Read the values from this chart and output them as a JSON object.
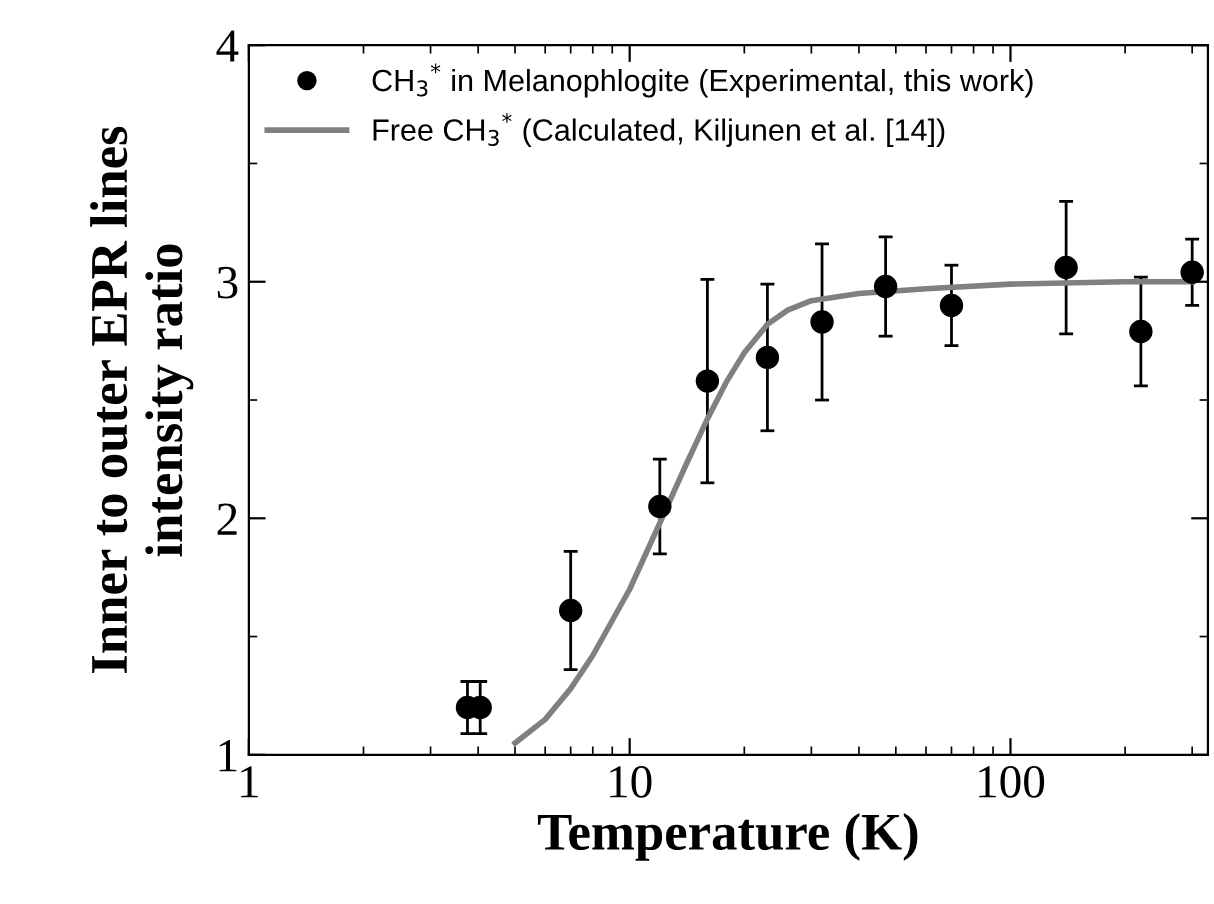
{
  "chart_data": {
    "type": "scatter",
    "xlabel": "Temperature (K)",
    "ylabel": "Inner to outer EPR lines\nintensity ratio",
    "log": "x",
    "xlim": [
      1,
      330
    ],
    "xticks": [
      1,
      10,
      100
    ],
    "ylim": [
      1,
      4
    ],
    "yticks": [
      1,
      2,
      3,
      4
    ],
    "grid": false,
    "legend": "top left",
    "series": [
      {
        "name": "CH$_{3}$$^{*}$ in Melanophlogite (Experimental, this work)",
        "color": "#000000",
        "marker": "circle",
        "x": [
          3.75,
          4.05,
          7,
          12,
          16,
          23,
          32,
          47,
          70,
          140,
          220,
          300
        ],
        "values": [
          1.2,
          1.2,
          1.61,
          2.05,
          2.58,
          2.68,
          2.83,
          2.98,
          2.9,
          3.06,
          2.79,
          3.04
        ],
        "errors": [
          0.11,
          0.11,
          0.25,
          0.2,
          0.43,
          0.31,
          0.33,
          0.21,
          0.17,
          0.28,
          0.23,
          0.14
        ]
      },
      {
        "name": "Free CH$_{3}$$^{*}$ (Calculated, Kiljunen et al. [14])",
        "type": "line",
        "color": "#808080",
        "marker": "none",
        "line_style": "solid",
        "x": [
          5,
          6,
          7,
          8,
          10,
          12,
          14,
          16,
          18,
          20,
          23,
          26,
          30,
          40,
          60,
          100,
          200,
          300
        ],
        "values": [
          1.05,
          1.15,
          1.28,
          1.42,
          1.7,
          1.98,
          2.22,
          2.42,
          2.58,
          2.7,
          2.82,
          2.88,
          2.92,
          2.95,
          2.97,
          2.99,
          3.0,
          3.0
        ]
      }
    ]
  }
}
